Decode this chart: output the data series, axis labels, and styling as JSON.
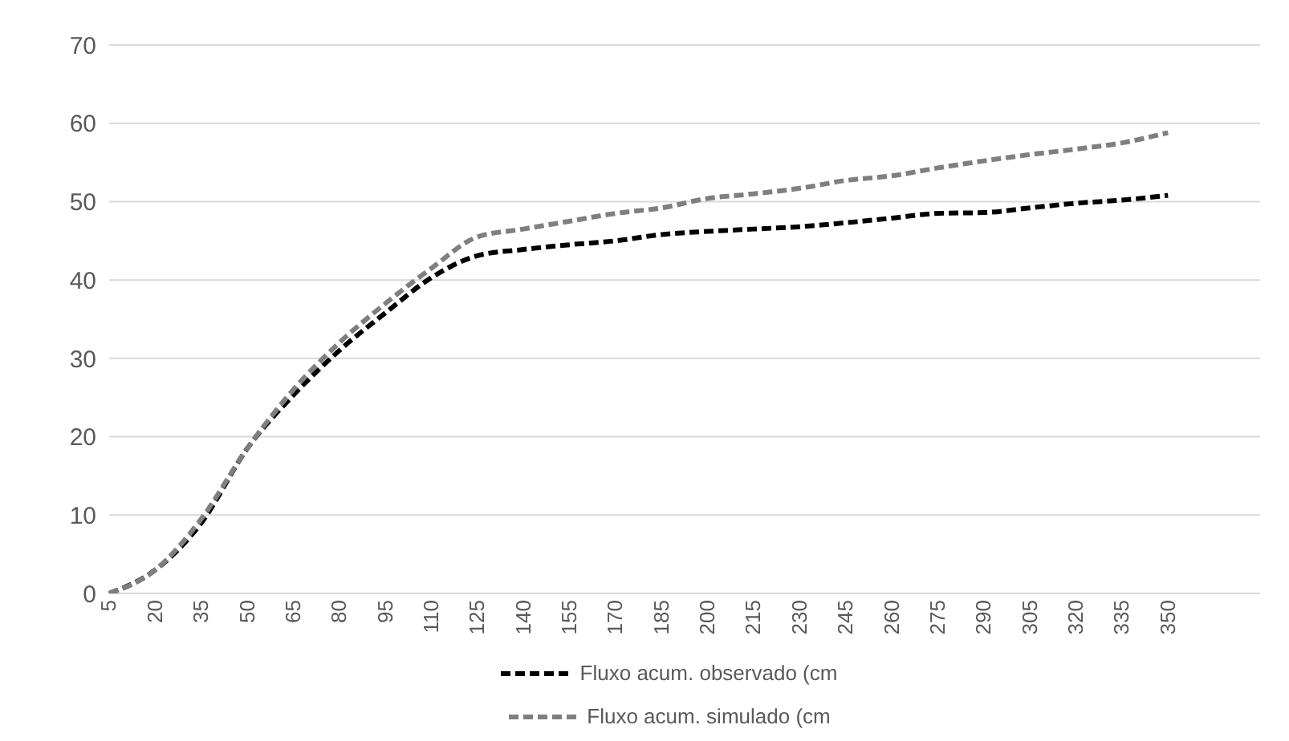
{
  "chart_data": {
    "type": "line",
    "categories": [
      "5",
      "20",
      "35",
      "50",
      "65",
      "80",
      "95",
      "110",
      "125",
      "140",
      "155",
      "170",
      "185",
      "200",
      "215",
      "230",
      "245",
      "260",
      "275",
      "290",
      "305",
      "320",
      "335",
      "350",
      null,
      null
    ],
    "series": [
      {
        "name": "Fluxo acum. observado (cm",
        "color": "#000000",
        "values": [
          0,
          3,
          9,
          18.5,
          25.3,
          31,
          35.8,
          40.3,
          43.1,
          43.9,
          44.5,
          45,
          45.8,
          46.2,
          46.5,
          46.8,
          47.3,
          47.9,
          48.5,
          48.6,
          49.2,
          49.8,
          50.2,
          50.8,
          null,
          null
        ]
      },
      {
        "name": "Fluxo acum. simulado (cm",
        "color": "#7f7f7f",
        "values": [
          0,
          3,
          9.5,
          18.5,
          26,
          32,
          37,
          41.5,
          45.5,
          46.5,
          47.5,
          48.5,
          49.2,
          50.4,
          51,
          51.7,
          52.7,
          53.3,
          54.3,
          55.2,
          56,
          56.7,
          57.5,
          58.8,
          null,
          null
        ]
      }
    ],
    "ylim": [
      0,
      70
    ],
    "yticks": [
      0,
      10,
      20,
      30,
      40,
      50,
      60,
      70
    ],
    "grid": "y",
    "legend": "bottom",
    "line_style": "dashed",
    "marker": "none"
  }
}
